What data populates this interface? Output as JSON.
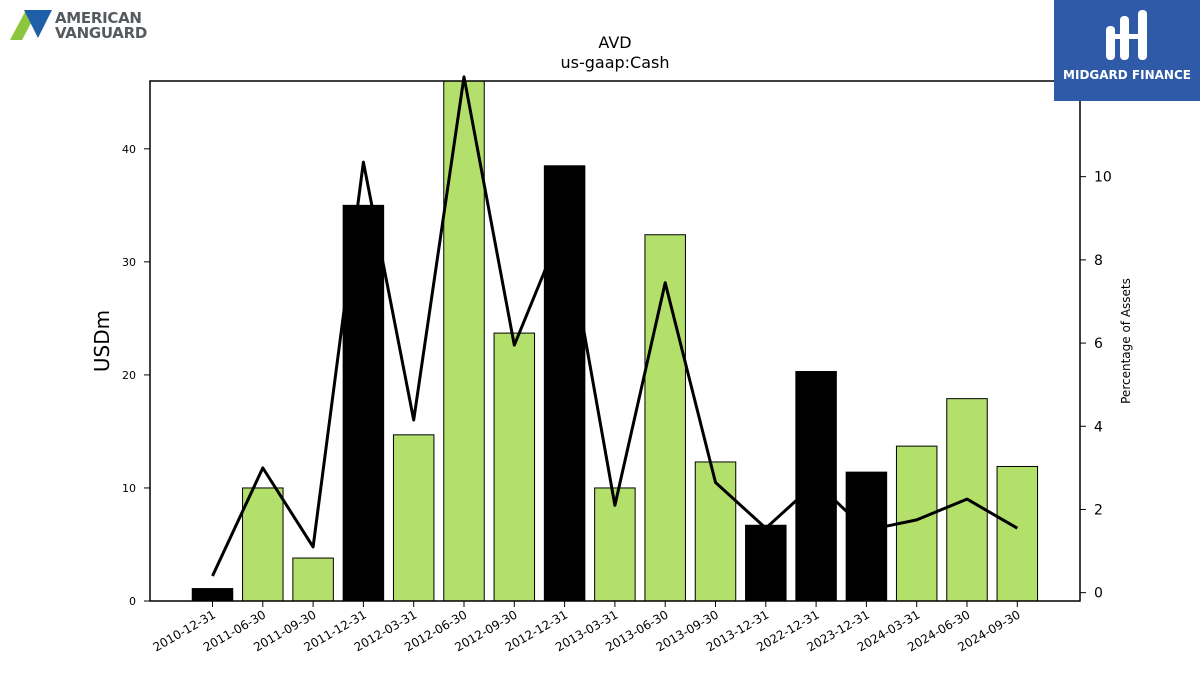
{
  "logos": {
    "left": {
      "line1": "AMERICAN",
      "line2": "VANGUARD"
    },
    "right": {
      "text": "MIDGARD FINANCE"
    }
  },
  "colors": {
    "green": "#b3df6b",
    "black": "#000000",
    "line": "#000000",
    "logo_blue": "#2f5aa8"
  },
  "chart_data": {
    "type": "bar",
    "title": "AVD",
    "subtitle": "us-gaap:Cash",
    "ylabel": "USDm",
    "y2label": "Percentage of Assets",
    "categories": [
      "2010-12-31",
      "2011-06-30",
      "2011-09-30",
      "2011-12-31",
      "2012-03-31",
      "2012-06-30",
      "2012-09-30",
      "2012-12-31",
      "2013-03-31",
      "2013-06-30",
      "2013-09-30",
      "2013-12-31",
      "2022-12-31",
      "2023-12-31",
      "2024-03-31",
      "2024-06-30",
      "2024-09-30"
    ],
    "series": [
      {
        "values": [
          1.1,
          10.0,
          3.8,
          35.0,
          14.7,
          46.0,
          23.7,
          38.5,
          10.0,
          32.4,
          12.3,
          6.7,
          20.3,
          11.4,
          13.7,
          17.9,
          11.9
        ],
        "bar_colors": [
          "black",
          "green",
          "green",
          "black",
          "green",
          "green",
          "green",
          "black",
          "green",
          "green",
          "green",
          "black",
          "black",
          "black",
          "green",
          "green",
          "green"
        ]
      },
      {
        "axis": "right",
        "type": "line",
        "values": [
          0.4,
          3.0,
          1.1,
          10.35,
          4.15,
          12.4,
          5.95,
          8.9,
          2.1,
          7.45,
          2.65,
          1.55,
          2.65,
          1.5,
          1.75,
          2.25,
          1.55
        ]
      }
    ],
    "ylim": [
      0,
      46
    ],
    "yticks": [
      0,
      10,
      20,
      30,
      40
    ],
    "y2lim": [
      -0.2,
      12.3
    ],
    "y2ticks": [
      0,
      2,
      4,
      6,
      8,
      10
    ],
    "grid": false,
    "legend": "none"
  }
}
